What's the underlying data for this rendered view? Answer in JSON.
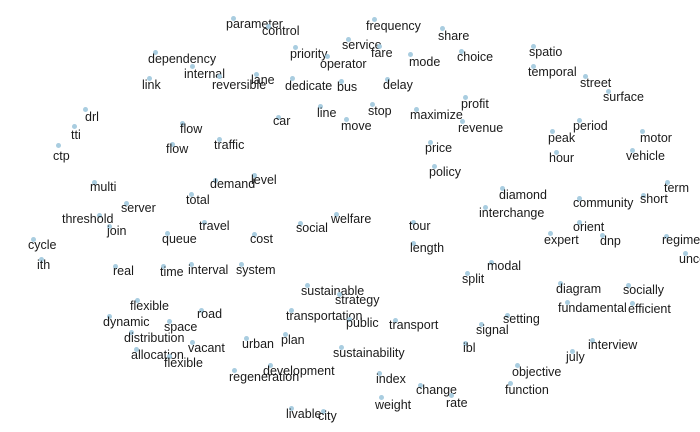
{
  "terms": [
    "parameter",
    "control",
    "frequency",
    "share",
    "service",
    "fare",
    "priority",
    "operator",
    "mode",
    "choice",
    "spatio",
    "dependency",
    "internal",
    "reversible",
    "lane",
    "dedicate",
    "bus",
    "delay",
    "link",
    "temporal",
    "street",
    "surface",
    "drl",
    "tti",
    "ctp",
    "flow",
    "flow",
    "traffic",
    "car",
    "line",
    "move",
    "stop",
    "maximize",
    "profit",
    "revenue",
    "peak",
    "period",
    "hour",
    "motor",
    "vehicle",
    "price",
    "policy",
    "level",
    "multi",
    "demand",
    "total",
    "server",
    "threshold",
    "join",
    "cycle",
    "ith",
    "diamond",
    "interchange",
    "community",
    "short",
    "term",
    "orient",
    "expert",
    "dnp",
    "regime",
    "uncong",
    "travel",
    "queue",
    "cost",
    "social",
    "welfare",
    "tour",
    "length",
    "real",
    "time",
    "interval",
    "system",
    "modal",
    "split",
    "sustainable",
    "strategy",
    "transportation",
    "public",
    "transport",
    "flexible",
    "dynamic",
    "space",
    "road",
    "distribution",
    "vacant",
    "allocation",
    "flexible",
    "urban",
    "plan",
    "sustainability",
    "setting",
    "signal",
    "ibl",
    "diagram",
    "socially",
    "fundamental",
    "efficient",
    "interview",
    "july",
    "development",
    "regeneration",
    "objective",
    "index",
    "change",
    "rate",
    "function",
    "weight",
    "livable",
    "city"
  ]
}
